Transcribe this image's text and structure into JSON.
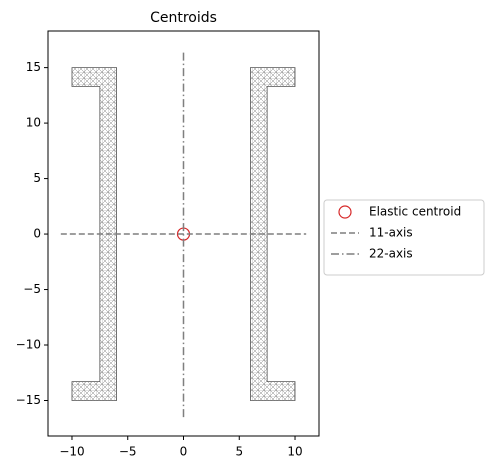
{
  "chart_data": {
    "type": "line",
    "title": "Centroids",
    "xlim": [
      -12.15,
      12.15
    ],
    "ylim": [
      -18.2,
      18.3
    ],
    "xticks": [
      {
        "value": -10,
        "label": "−10"
      },
      {
        "value": -5,
        "label": "−5"
      },
      0,
      5,
      10
    ],
    "yticks": [
      {
        "value": -15,
        "label": "−15"
      },
      {
        "value": -10,
        "label": "−10"
      },
      {
        "value": -5,
        "label": "−5"
      },
      0,
      5,
      10,
      15
    ],
    "shapes": [
      {
        "x": [
          -10,
          -6,
          -6,
          -10,
          -10,
          -7.5,
          -7.5,
          -10
        ],
        "y": [
          15,
          15,
          -15,
          -15,
          -13.3,
          -13.3,
          13.3,
          13.3
        ]
      },
      {
        "x": [
          10,
          6,
          6,
          10,
          10,
          7.5,
          7.5,
          10
        ],
        "y": [
          15,
          15,
          -15,
          -15,
          -13.3,
          -13.3,
          13.3,
          13.3
        ]
      }
    ],
    "series": [
      {
        "name": "Elastic centroid",
        "type": "scatter",
        "color": "#d62728",
        "x": [
          0
        ],
        "values": [
          0
        ]
      },
      {
        "name": "11-axis",
        "color": "#7f7f7f",
        "linestyle": "dashed",
        "x": [
          -11,
          11
        ],
        "values": [
          0,
          0
        ]
      },
      {
        "name": "22-axis",
        "color": "#7f7f7f",
        "linestyle": "dashdot",
        "x": [
          0,
          0
        ],
        "values": [
          -16.5,
          16.5
        ]
      }
    ],
    "legend": "right"
  }
}
